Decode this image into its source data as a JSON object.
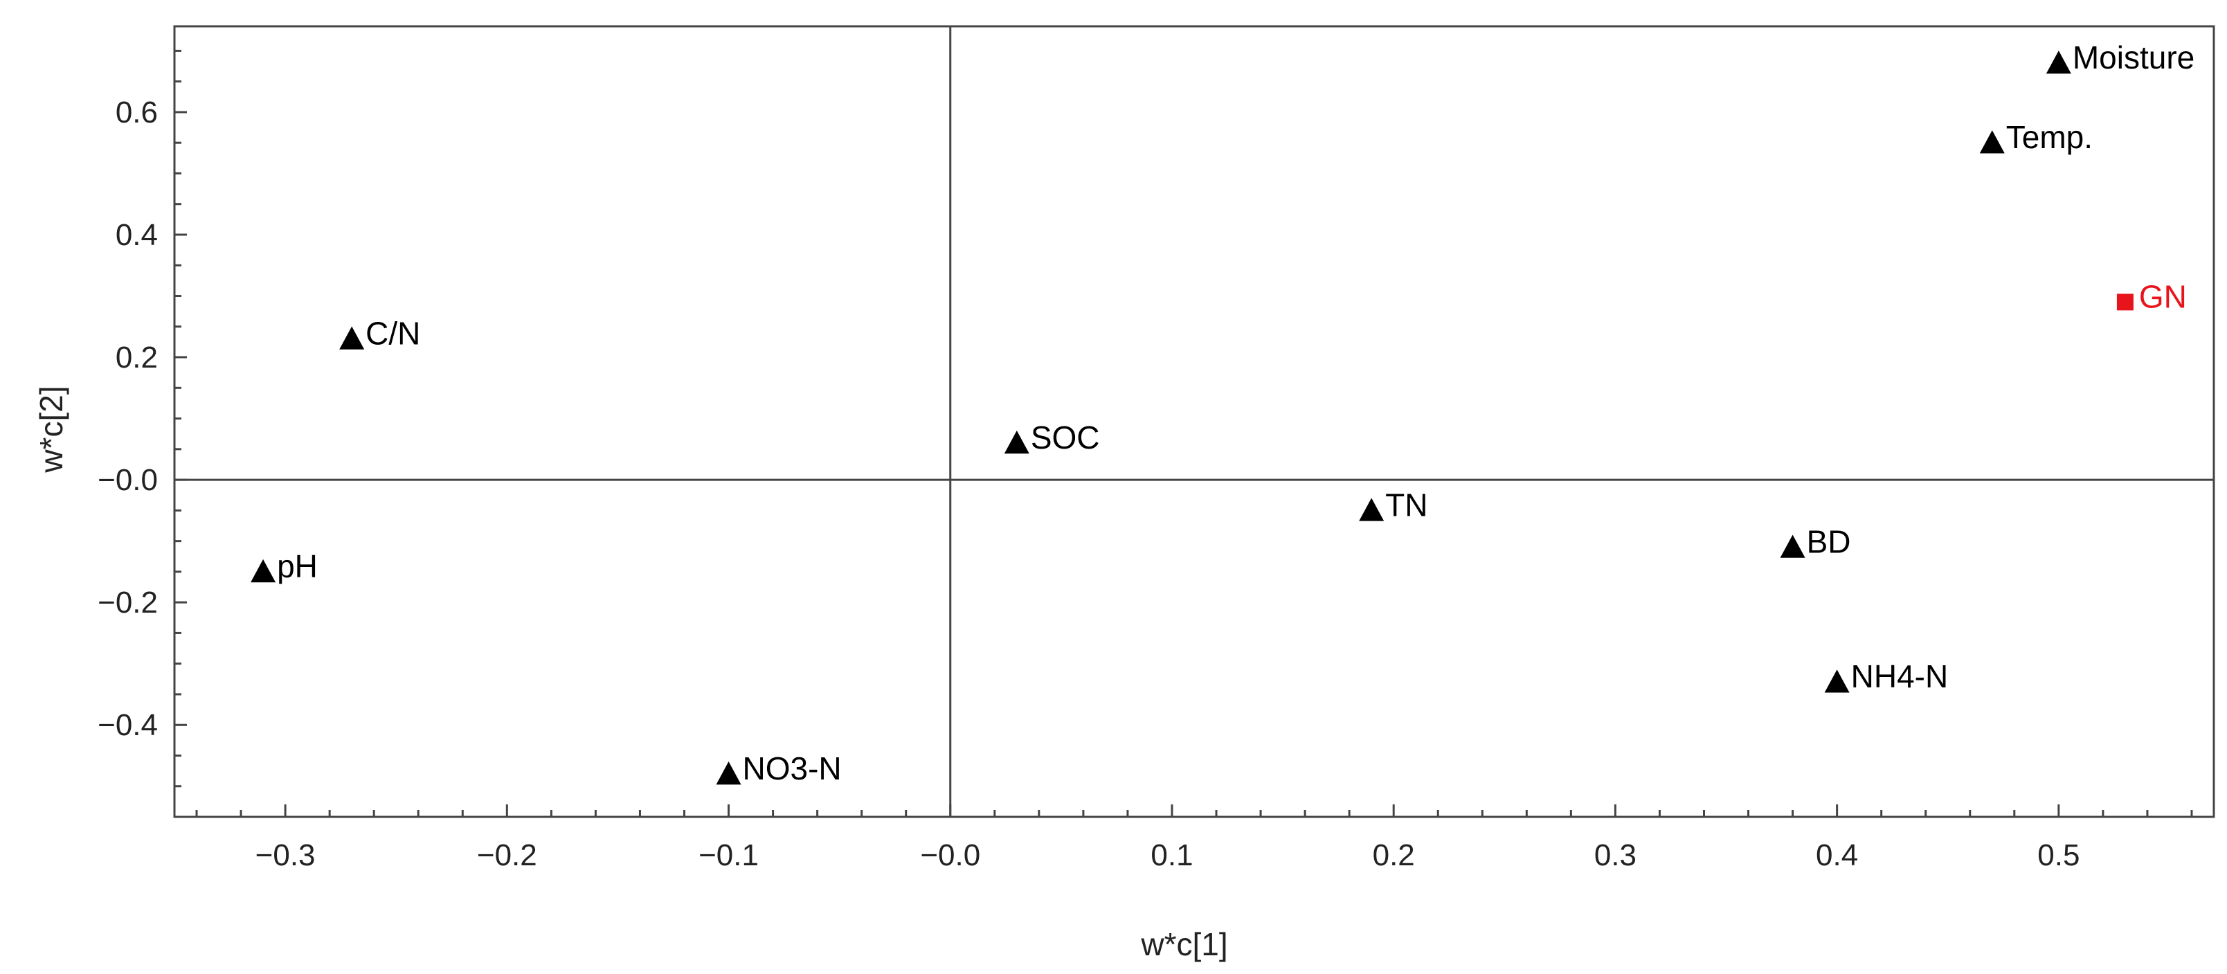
{
  "chart_data": {
    "type": "scatter",
    "title": "",
    "xlabel": "w*c[1]",
    "ylabel": "w*c[2]",
    "xlim": [
      -0.35,
      0.57
    ],
    "ylim": [
      -0.55,
      0.74
    ],
    "x_ticks": [
      -0.3,
      -0.2,
      -0.1,
      0.0,
      0.1,
      0.2,
      0.3,
      0.4,
      0.5
    ],
    "x_tick_labels": [
      "−0.3",
      "−0.2",
      "−0.1",
      "−0.0",
      "0.1",
      "0.2",
      "0.3",
      "0.4",
      "0.5"
    ],
    "y_ticks": [
      0.6,
      0.4,
      0.2,
      0.0,
      -0.2,
      -0.4
    ],
    "y_tick_labels": [
      "0.6",
      "0.4",
      "0.2",
      "−0.0",
      "−0.2",
      "−0.4"
    ],
    "grid": false,
    "reference_lines": {
      "x": 0,
      "y": 0
    },
    "points": [
      {
        "label": "Moisture",
        "x": 0.5,
        "y": 0.68,
        "marker": "triangle",
        "color": "#000000"
      },
      {
        "label": "Temp.",
        "x": 0.47,
        "y": 0.55,
        "marker": "triangle",
        "color": "#000000"
      },
      {
        "label": "GN",
        "x": 0.53,
        "y": 0.29,
        "marker": "square",
        "color": "#e8141b"
      },
      {
        "label": "C/N",
        "x": -0.27,
        "y": 0.23,
        "marker": "triangle",
        "color": "#000000"
      },
      {
        "label": "SOC",
        "x": 0.03,
        "y": 0.06,
        "marker": "triangle",
        "color": "#000000"
      },
      {
        "label": "TN",
        "x": 0.19,
        "y": -0.05,
        "marker": "triangle",
        "color": "#000000"
      },
      {
        "label": "BD",
        "x": 0.38,
        "y": -0.11,
        "marker": "triangle",
        "color": "#000000"
      },
      {
        "label": "pH",
        "x": -0.31,
        "y": -0.15,
        "marker": "triangle",
        "color": "#000000"
      },
      {
        "label": "NH4-N",
        "x": 0.4,
        "y": -0.33,
        "marker": "triangle",
        "color": "#000000"
      },
      {
        "label": "NO3-N",
        "x": -0.1,
        "y": -0.48,
        "marker": "triangle",
        "color": "#000000"
      }
    ]
  }
}
